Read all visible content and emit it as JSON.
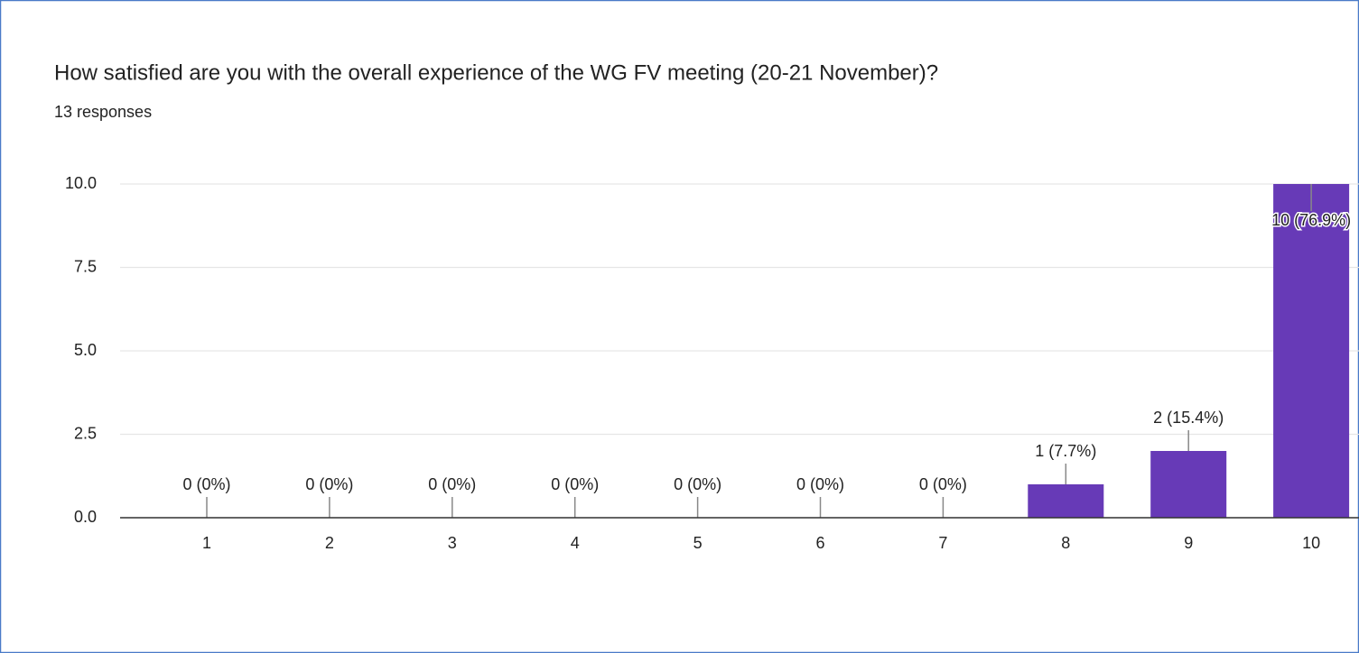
{
  "chart_data": {
    "type": "bar",
    "title": "How satisfied are you with the overall experience of the WG FV meeting (20-21 November)?",
    "subtitle": "13 responses",
    "categories": [
      "1",
      "2",
      "3",
      "4",
      "5",
      "6",
      "7",
      "8",
      "9",
      "10"
    ],
    "values": [
      0,
      0,
      0,
      0,
      0,
      0,
      0,
      1,
      2,
      10
    ],
    "value_labels": [
      "0 (0%)",
      "0 (0%)",
      "0 (0%)",
      "0 (0%)",
      "0 (0%)",
      "0 (0%)",
      "0 (0%)",
      "1 (7.7%)",
      "2 (15.4%)",
      "10 (76.9%)"
    ],
    "color": "#673ab7",
    "ylim": [
      0,
      10
    ],
    "yticks": [
      {
        "value": 0,
        "label": "0.0"
      },
      2.5,
      {
        "value": 5,
        "label": "5.0"
      },
      7.5,
      {
        "value": 10,
        "label": "10.0"
      }
    ],
    "grid": true
  }
}
